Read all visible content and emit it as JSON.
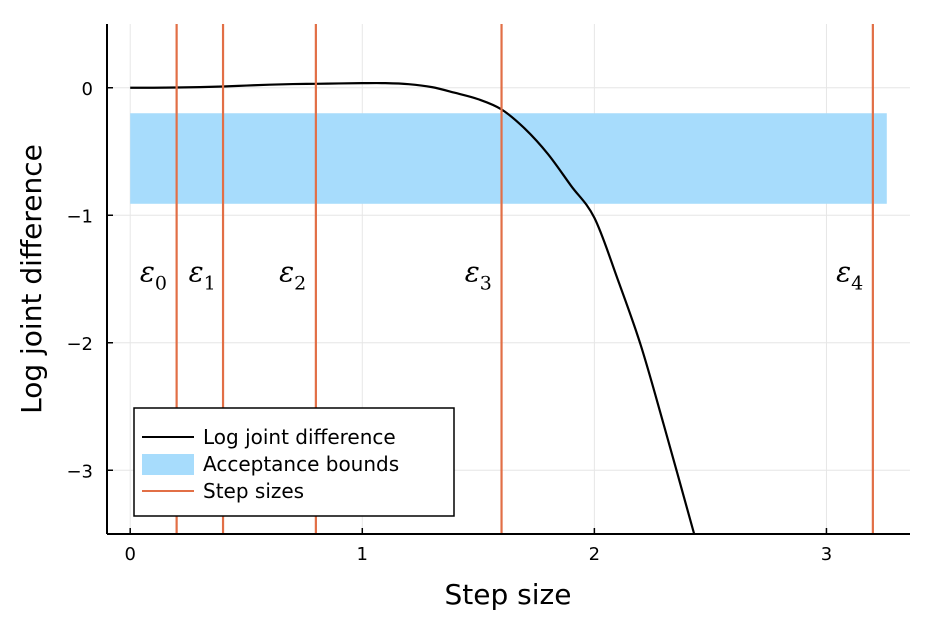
{
  "chart_data": {
    "type": "line",
    "xlabel": "Step size",
    "ylabel": "Log joint difference",
    "xlim": [
      -0.1,
      3.36
    ],
    "ylim": [
      -3.5,
      0.5
    ],
    "x_ticks": [
      0,
      1,
      2,
      3
    ],
    "x_tick_labels": [
      "0",
      "1",
      "2",
      "3"
    ],
    "y_ticks": [
      0,
      -1,
      -2,
      -3
    ],
    "y_tick_labels": [
      "0",
      "−1",
      "−2",
      "−3"
    ],
    "grid": true,
    "legend_position": "bottom-left",
    "legend": [
      "Log joint difference",
      "Acceptance bounds",
      "Step sizes"
    ],
    "series": [
      {
        "name": "Log joint difference",
        "kind": "line",
        "color": "#000000",
        "x": [
          0,
          0.1,
          0.2,
          0.3,
          0.4,
          0.5,
          0.6,
          0.7,
          0.8,
          0.9,
          1.0,
          1.1,
          1.2,
          1.3,
          1.4,
          1.5,
          1.6,
          1.7,
          1.8,
          1.9,
          2.0,
          2.1,
          2.2,
          2.3,
          2.43
        ],
        "y": [
          0,
          0,
          0.002,
          0.005,
          0.01,
          0.017,
          0.024,
          0.029,
          0.031,
          0.034,
          0.036,
          0.036,
          0.028,
          0.005,
          -0.04,
          -0.09,
          -0.17,
          -0.32,
          -0.52,
          -0.77,
          -1.02,
          -1.5,
          -2.02,
          -2.65,
          -3.5
        ]
      },
      {
        "name": "Acceptance bounds",
        "kind": "band",
        "color": "#a7dcfc",
        "x": [
          0,
          3.26
        ],
        "y_low": -0.91,
        "y_high": -0.2
      },
      {
        "name": "Step sizes",
        "kind": "vlines",
        "color": "#e26f46",
        "x": [
          0.2,
          0.4,
          0.8,
          1.6,
          3.2
        ]
      }
    ],
    "annotations": [
      {
        "symbol": "ε",
        "subscript": "0",
        "x": 0.1,
        "y": -1.52
      },
      {
        "symbol": "ε",
        "subscript": "1",
        "x": 0.31,
        "y": -1.52
      },
      {
        "symbol": "ε",
        "subscript": "2",
        "x": 0.7,
        "y": -1.52
      },
      {
        "symbol": "ε",
        "subscript": "3",
        "x": 1.5,
        "y": -1.52
      },
      {
        "symbol": "ε",
        "subscript": "4",
        "x": 3.1,
        "y": -1.52
      }
    ]
  }
}
